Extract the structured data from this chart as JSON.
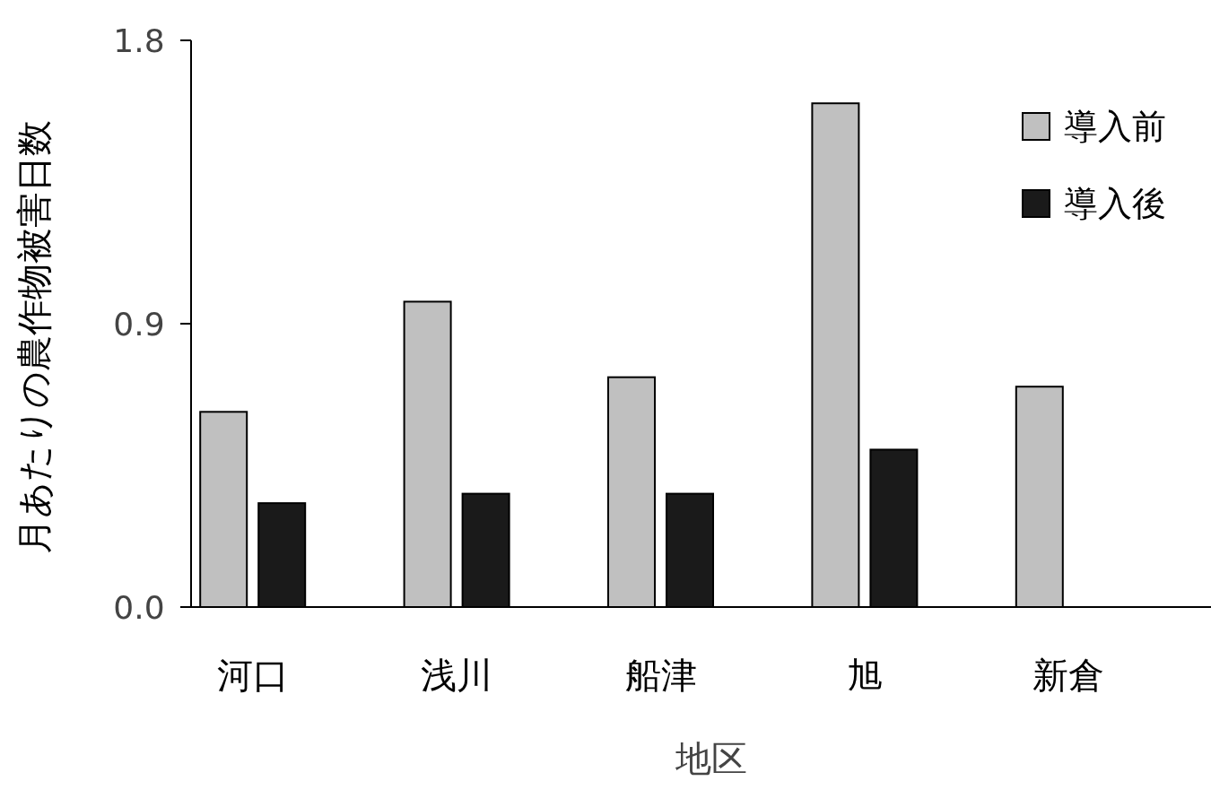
{
  "chart_data": {
    "type": "bar",
    "xlabel": "地区",
    "ylabel": "月あたりの農作物被害日数",
    "categories": [
      "河口",
      "浅川",
      "船津",
      "旭",
      "新倉"
    ],
    "series": [
      {
        "name": "導入前",
        "color": "#c0c0c0",
        "values": [
          0.62,
          0.97,
          0.73,
          1.6,
          0.7
        ]
      },
      {
        "name": "導入後",
        "color": "#1a1a1a",
        "values": [
          0.33,
          0.36,
          0.36,
          0.5,
          null
        ]
      }
    ],
    "ylim": [
      0,
      1.8
    ],
    "yticks": [
      {
        "value": 0,
        "label": "0.0"
      },
      0.9,
      1.8
    ],
    "grid": false,
    "legend": "top right"
  }
}
